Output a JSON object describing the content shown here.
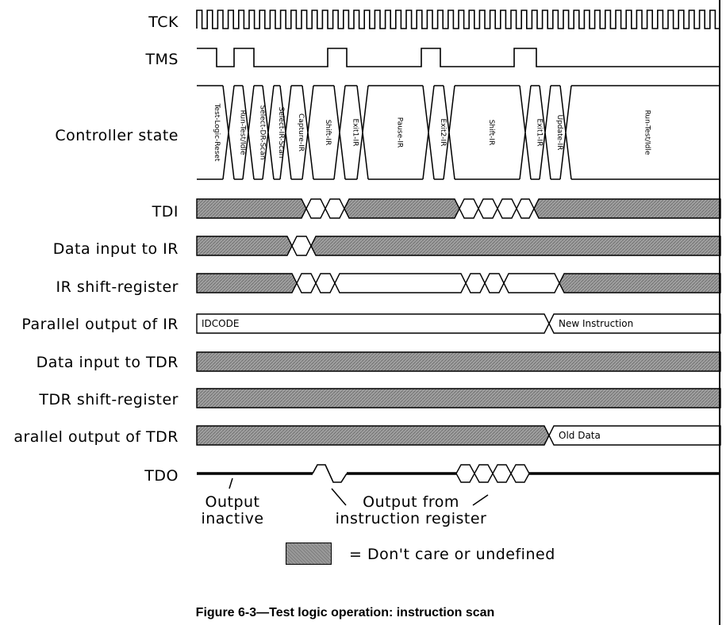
{
  "figure": {
    "caption": "Figure 6-3—Test logic operation: instruction scan"
  },
  "signals": [
    {
      "id": "tck",
      "label": "TCK"
    },
    {
      "id": "tms",
      "label": "TMS"
    },
    {
      "id": "state",
      "label": "Controller state"
    },
    {
      "id": "tdi",
      "label": "TDI"
    },
    {
      "id": "data-input-ir",
      "label": "Data input to IR"
    },
    {
      "id": "ir-shift",
      "label": "IR shift-register"
    },
    {
      "id": "parallel-ir",
      "label": "Parallel output of IR"
    },
    {
      "id": "data-input-tdr",
      "label": "Data input to TDR"
    },
    {
      "id": "tdr-shift",
      "label": "TDR shift-register"
    },
    {
      "id": "parallel-tdr",
      "label": "arallel output of TDR"
    },
    {
      "id": "tdo",
      "label": "TDO"
    }
  ],
  "controller_states": [
    "Test-Logic-Reset",
    "Run-Test/Idle",
    "Select-DR-Scan",
    "Select-IR-Scan",
    "Capture-IR",
    "Shift-IR",
    "Exit1-IR",
    "Pause-IR",
    "Exit2-IR",
    "Shift-IR",
    "Exit1-IR",
    "Update-IR",
    "Run-Test/Idle"
  ],
  "bus_values": {
    "ir_before": "IDCODE",
    "ir_after": "New Instruction",
    "tdr_after": "Old Data"
  },
  "annotations": {
    "output_inactive": "Output\ninactive",
    "output_from_ir": "Output from\ninstruction register"
  },
  "legend": {
    "text": "= Don't care or undefined",
    "swatch_color": "#9a9a9a"
  },
  "colors": {
    "line": "#000000",
    "dont_care_fill": "#9a9a9a",
    "background": "#ffffff"
  }
}
